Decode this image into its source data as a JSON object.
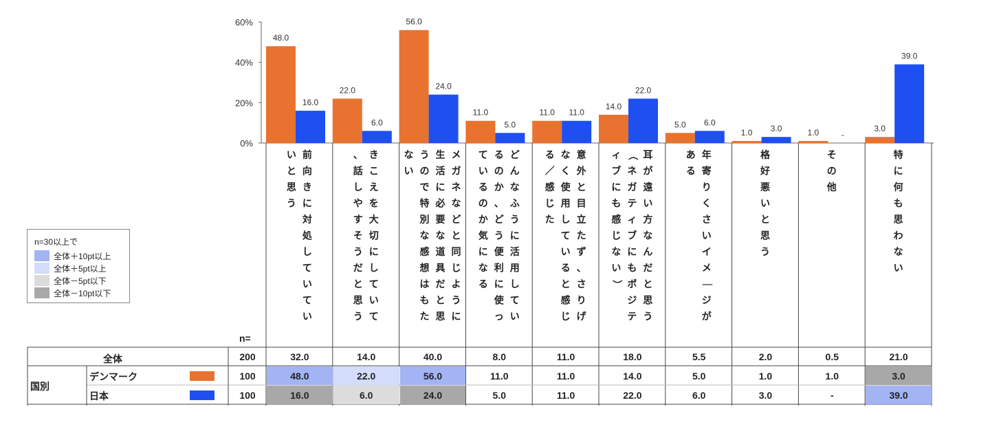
{
  "colors": {
    "denmark": "#E87330",
    "japan": "#1E4FF0"
  },
  "chart_data": {
    "type": "bar",
    "ylim": [
      0,
      60
    ],
    "yticks": [
      "0%",
      "20%",
      "40%",
      "60%"
    ],
    "categories": [
      "前向きに対処していていいと思う",
      "きこえを大切にしていて、話しやすそうだと思う",
      "メガネなどと同じように生活に必要な道具だと思うので特別な感想はもたない",
      "どんなふうに活用しているのか、どう便利に使っているのか気になる",
      "意外と目立たず、さりげなく使用していると感じる／感じた",
      "耳が遠い方なんだと思う（ネガティブにもポジティブにも感じない）",
      "年寄りくさいイメージがある",
      "格好悪いと思う",
      "その他",
      "特に何も思わない"
    ],
    "series": [
      {
        "name": "デンマーク",
        "values": [
          48.0,
          22.0,
          56.0,
          11.0,
          11.0,
          14.0,
          5.0,
          1.0,
          1.0,
          3.0
        ],
        "labels": [
          "48.0",
          "22.0",
          "56.0",
          "11.0",
          "11.0",
          "14.0",
          "5.0",
          "1.0",
          "1.0",
          "3.0"
        ]
      },
      {
        "name": "日本",
        "values": [
          16.0,
          6.0,
          24.0,
          5.0,
          11.0,
          22.0,
          6.0,
          3.0,
          0,
          39.0
        ],
        "labels": [
          "16.0",
          "6.0",
          "24.0",
          "5.0",
          "11.0",
          "22.0",
          "6.0",
          "3.0",
          "-",
          "39.0"
        ]
      }
    ]
  },
  "legend": {
    "title": "n=30以上で",
    "items": [
      {
        "label": "全体＋10pt以上",
        "color": "#A3B4F5"
      },
      {
        "label": "全体＋5pt以上",
        "color": "#D3DCFA"
      },
      {
        "label": "全体－5pt以下",
        "color": "#DCDCDC"
      },
      {
        "label": "全体－10pt以下",
        "color": "#A8A8A8"
      }
    ]
  },
  "table": {
    "n_header": "n=",
    "group_label": "国別",
    "total": {
      "label": "全体",
      "n": "200",
      "values": [
        "32.0",
        "14.0",
        "40.0",
        "8.0",
        "11.0",
        "18.0",
        "5.5",
        "2.0",
        "0.5",
        "21.0"
      ]
    },
    "rows": [
      {
        "label": "デンマーク",
        "n": "100",
        "values": [
          "48.0",
          "22.0",
          "56.0",
          "11.0",
          "11.0",
          "14.0",
          "5.0",
          "1.0",
          "1.0",
          "3.0"
        ],
        "highlight": [
          "p10",
          "p5",
          "p10",
          "",
          "",
          "",
          "",
          "",
          "",
          "m10"
        ]
      },
      {
        "label": "日本",
        "n": "100",
        "values": [
          "16.0",
          "6.0",
          "24.0",
          "5.0",
          "11.0",
          "22.0",
          "6.0",
          "3.0",
          "-",
          "39.0"
        ],
        "highlight": [
          "m10",
          "m5",
          "m10",
          "",
          "",
          "",
          "",
          "",
          "",
          "p10"
        ]
      }
    ]
  }
}
